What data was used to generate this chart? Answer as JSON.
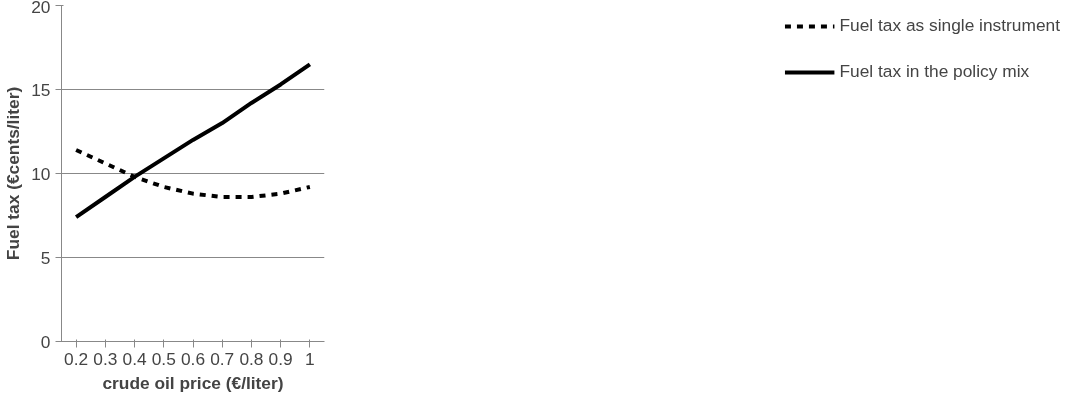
{
  "chart_data": {
    "type": "line",
    "xlabel": "crude oil price (€/liter)",
    "ylabel": "Fuel tax (€cents/liter)",
    "categories": [
      "0.2",
      "0.3",
      "0.4",
      "0.5",
      "0.6",
      "0.7",
      "0.8",
      "0.9",
      "1"
    ],
    "series": [
      {
        "name": "Fuel tax as single instrument",
        "color": "#000000",
        "line_style": "dashed",
        "values": [
          11.4,
          10.6,
          9.8,
          9.2,
          8.8,
          8.6,
          8.6,
          8.8,
          9.2
        ]
      },
      {
        "name": "Fuel tax in the policy mix",
        "color": "#000000",
        "line_style": "solid",
        "values": [
          7.4,
          8.6,
          9.8,
          10.9,
          12.0,
          13.0,
          14.2,
          15.3,
          16.5
        ]
      }
    ],
    "ylim": [
      0,
      20
    ],
    "yticks": [
      0,
      5,
      10,
      15,
      20
    ],
    "grid": "y",
    "legend": "right",
    "marker": "none"
  }
}
